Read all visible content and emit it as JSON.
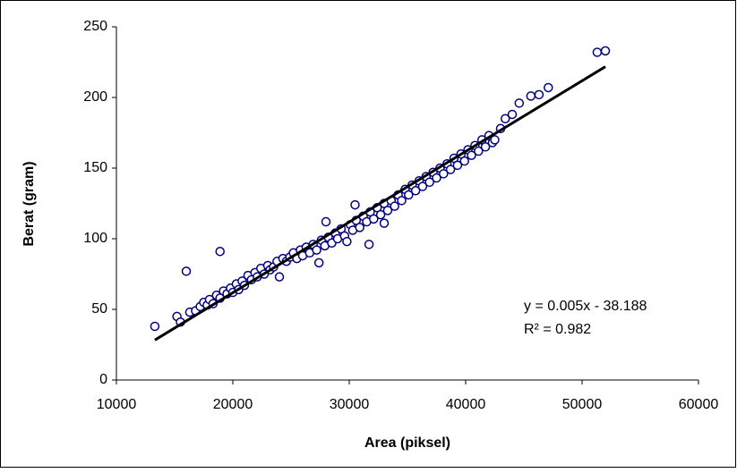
{
  "chart_data": {
    "type": "scatter",
    "x_label": "Area (piksel)",
    "y_label": "Berat (gram)",
    "xlim": [
      10000,
      60000
    ],
    "xticks": [
      10000,
      20000,
      30000,
      40000,
      50000,
      60000
    ],
    "ylim": [
      0,
      250
    ],
    "yticks": [
      0,
      50,
      100,
      150,
      200,
      250
    ],
    "series": [
      {
        "color": "#000080",
        "x": [
          13300,
          15200,
          15500,
          16000,
          16300,
          16800,
          17200,
          17500,
          17800,
          18000,
          18300,
          18600,
          18900,
          18900,
          19200,
          19500,
          19800,
          20000,
          20300,
          20500,
          20800,
          21000,
          21300,
          21600,
          21900,
          22100,
          22400,
          22700,
          23000,
          23200,
          23500,
          23800,
          24000,
          24300,
          24600,
          24900,
          25200,
          25500,
          25800,
          26000,
          26300,
          26600,
          26900,
          27200,
          27400,
          27600,
          27900,
          28000,
          28200,
          28500,
          28800,
          29000,
          29300,
          29600,
          29800,
          30100,
          30300,
          30500,
          30600,
          30900,
          31200,
          31500,
          31700,
          31800,
          32100,
          32400,
          32700,
          33000,
          33000,
          33300,
          33600,
          33900,
          34200,
          34500,
          34800,
          35100,
          35400,
          35700,
          36000,
          36300,
          36600,
          36900,
          37200,
          37500,
          37800,
          38100,
          38400,
          38700,
          39000,
          39300,
          39600,
          39900,
          40200,
          40500,
          40800,
          41100,
          41400,
          41700,
          42000,
          42300,
          42500,
          43000,
          43400,
          44000,
          44600,
          45600,
          46300,
          47100,
          51300,
          52000
        ],
        "y": [
          38,
          45,
          41,
          77,
          48,
          49,
          52,
          55,
          53,
          57,
          54,
          60,
          58,
          91,
          63,
          61,
          65,
          62,
          68,
          64,
          70,
          67,
          74,
          71,
          76,
          73,
          79,
          75,
          81,
          78,
          80,
          84,
          73,
          86,
          84,
          87,
          90,
          86,
          92,
          88,
          94,
          90,
          96,
          92,
          83,
          99,
          95,
          112,
          101,
          97,
          104,
          100,
          107,
          102,
          98,
          110,
          106,
          124,
          113,
          108,
          116,
          112,
          96,
          119,
          114,
          122,
          117,
          125,
          111,
          120,
          127,
          123,
          131,
          127,
          135,
          131,
          138,
          134,
          141,
          137,
          144,
          140,
          147,
          143,
          150,
          146,
          153,
          149,
          157,
          152,
          160,
          155,
          163,
          159,
          166,
          162,
          170,
          165,
          173,
          168,
          170,
          178,
          185,
          188,
          196,
          201,
          202,
          207,
          232,
          233
        ]
      }
    ],
    "trendline": {
      "color": "#000000",
      "x": [
        13300,
        52000
      ],
      "y": [
        28.3,
        221.8
      ]
    },
    "equation": "y = 0.005x - 38.188",
    "r_squared": "R² = 0.982"
  }
}
